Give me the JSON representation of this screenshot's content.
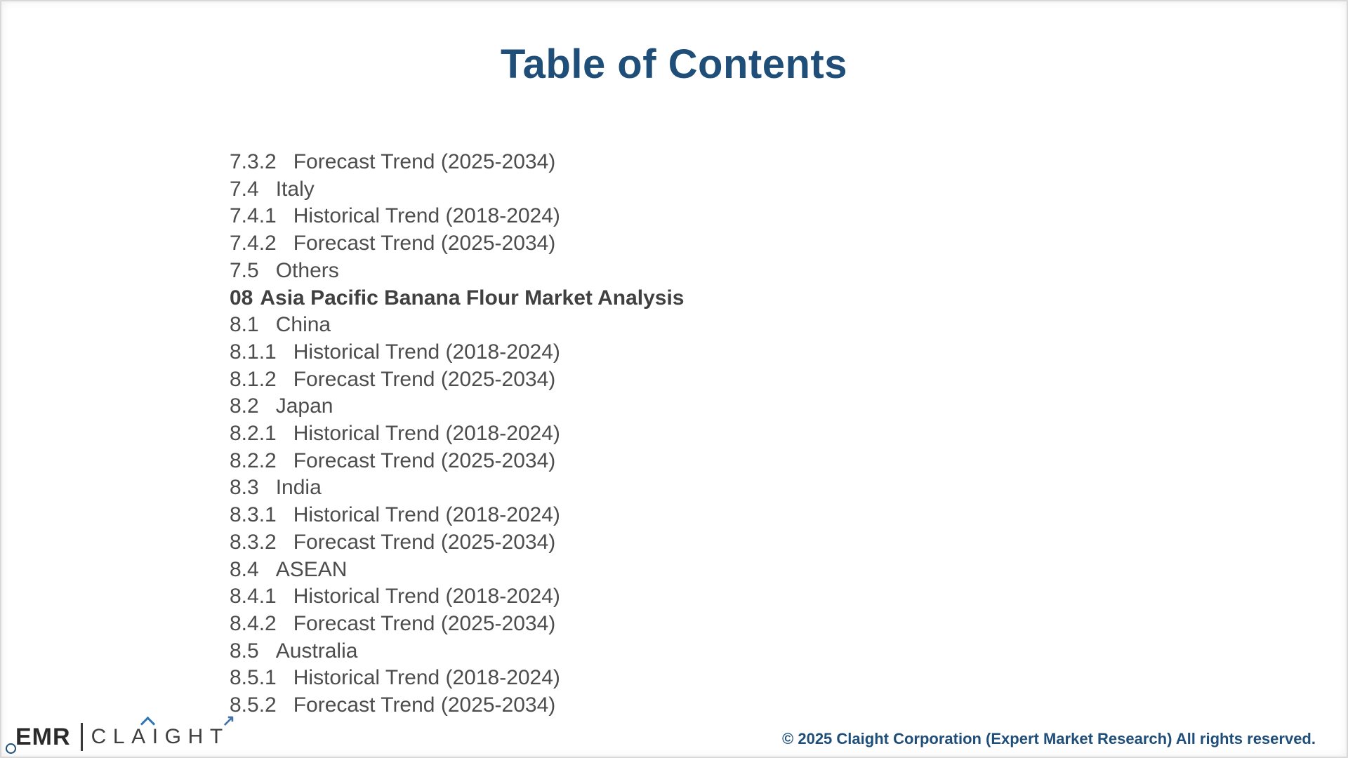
{
  "title": "Table of Contents",
  "toc": {
    "entries": [
      {
        "num": "7.3.2",
        "label": "Forecast Trend (2025-2034)",
        "bold": false
      },
      {
        "num": "7.4",
        "label": "Italy",
        "bold": false
      },
      {
        "num": "7.4.1",
        "label": "Historical Trend (2018-2024)",
        "bold": false
      },
      {
        "num": "7.4.2",
        "label": "Forecast Trend (2025-2034)",
        "bold": false
      },
      {
        "num": "7.5",
        "label": "Others",
        "bold": false
      },
      {
        "num": "08",
        "label": "Asia Pacific Banana Flour Market Analysis",
        "bold": true
      },
      {
        "num": "8.1",
        "label": "China",
        "bold": false
      },
      {
        "num": "8.1.1",
        "label": "Historical Trend (2018-2024)",
        "bold": false
      },
      {
        "num": "8.1.2",
        "label": "Forecast Trend (2025-2034)",
        "bold": false
      },
      {
        "num": "8.2",
        "label": "Japan",
        "bold": false
      },
      {
        "num": "8.2.1",
        "label": "Historical Trend (2018-2024)",
        "bold": false
      },
      {
        "num": "8.2.2",
        "label": "Forecast Trend (2025-2034)",
        "bold": false
      },
      {
        "num": "8.3",
        "label": "India",
        "bold": false
      },
      {
        "num": "8.3.1",
        "label": "Historical Trend (2018-2024)",
        "bold": false
      },
      {
        "num": "8.3.2",
        "label": "Forecast Trend (2025-2034)",
        "bold": false
      },
      {
        "num": "8.4",
        "label": "ASEAN",
        "bold": false
      },
      {
        "num": "8.4.1",
        "label": "Historical Trend (2018-2024)",
        "bold": false
      },
      {
        "num": "8.4.2",
        "label": "Forecast Trend (2025-2034)",
        "bold": false
      },
      {
        "num": "8.5",
        "label": "Australia",
        "bold": false
      },
      {
        "num": "8.5.1",
        "label": "Historical Trend (2018-2024)",
        "bold": false
      },
      {
        "num": "8.5.2",
        "label": "Forecast Trend (2025-2034)",
        "bold": false
      }
    ]
  },
  "footer": {
    "copyright": "© 2025 Claight Corporation (Expert Market Research) All rights reserved.",
    "logo": {
      "emr_text": "EMR",
      "claight_text": "CLAIGHT",
      "arrow_glyph": "↗"
    }
  },
  "colors": {
    "title": "#1f4e79",
    "toc_text": "#4d4d4d",
    "toc_section_text": "#404040",
    "copyright": "#1f4e79",
    "logo_accent": "#2e75b6"
  }
}
